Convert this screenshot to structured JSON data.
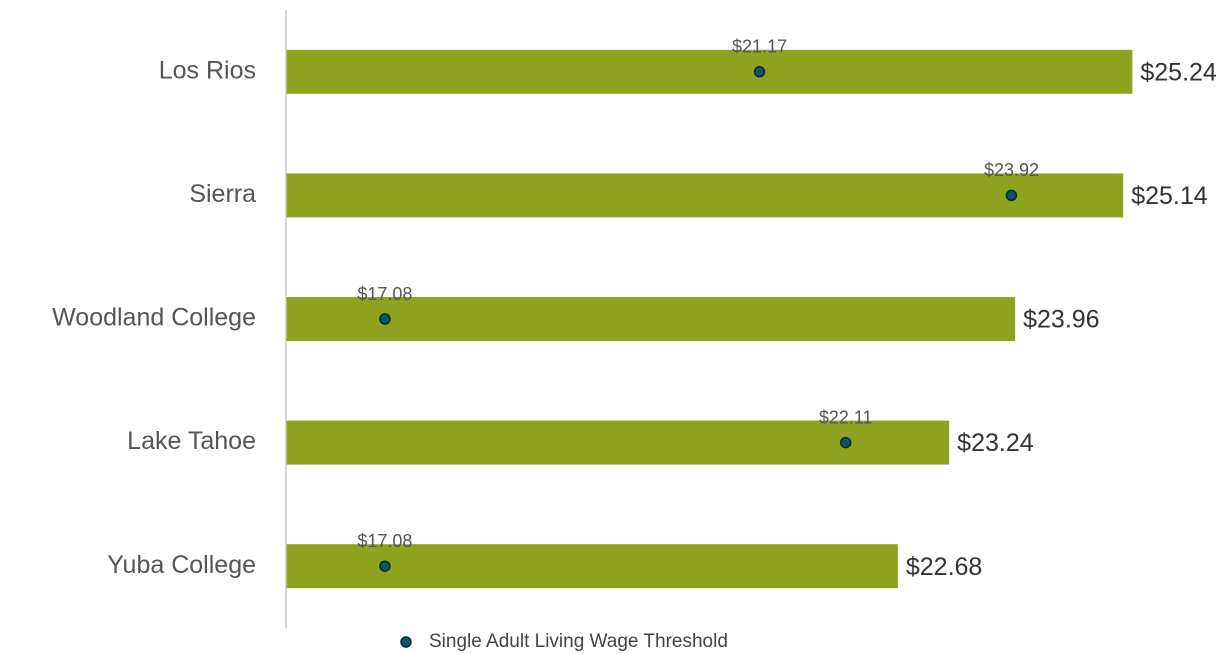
{
  "chart_data": {
    "type": "bar",
    "orientation": "horizontal",
    "categories": [
      "Los Rios",
      "Sierra",
      "Woodland College",
      "Lake Tahoe",
      "Yuba College"
    ],
    "series": [
      {
        "color": "#8fa321",
        "values": [
          25.24,
          25.14,
          23.96,
          23.24,
          22.68
        ],
        "value_labels": [
          "$25.24",
          "$25.14",
          "$23.96",
          "$23.24",
          "$22.68"
        ]
      },
      {
        "name": "Single Adult Living Wage Threshold",
        "type": "scatter",
        "color": "#0d5563",
        "values": [
          21.17,
          23.92,
          17.08,
          22.11,
          17.08
        ],
        "value_labels": [
          "$21.17",
          "$23.92",
          "$17.08",
          "$22.11",
          "$17.08"
        ]
      }
    ],
    "xlim": [
      16,
      26
    ],
    "legend": "bottom"
  }
}
